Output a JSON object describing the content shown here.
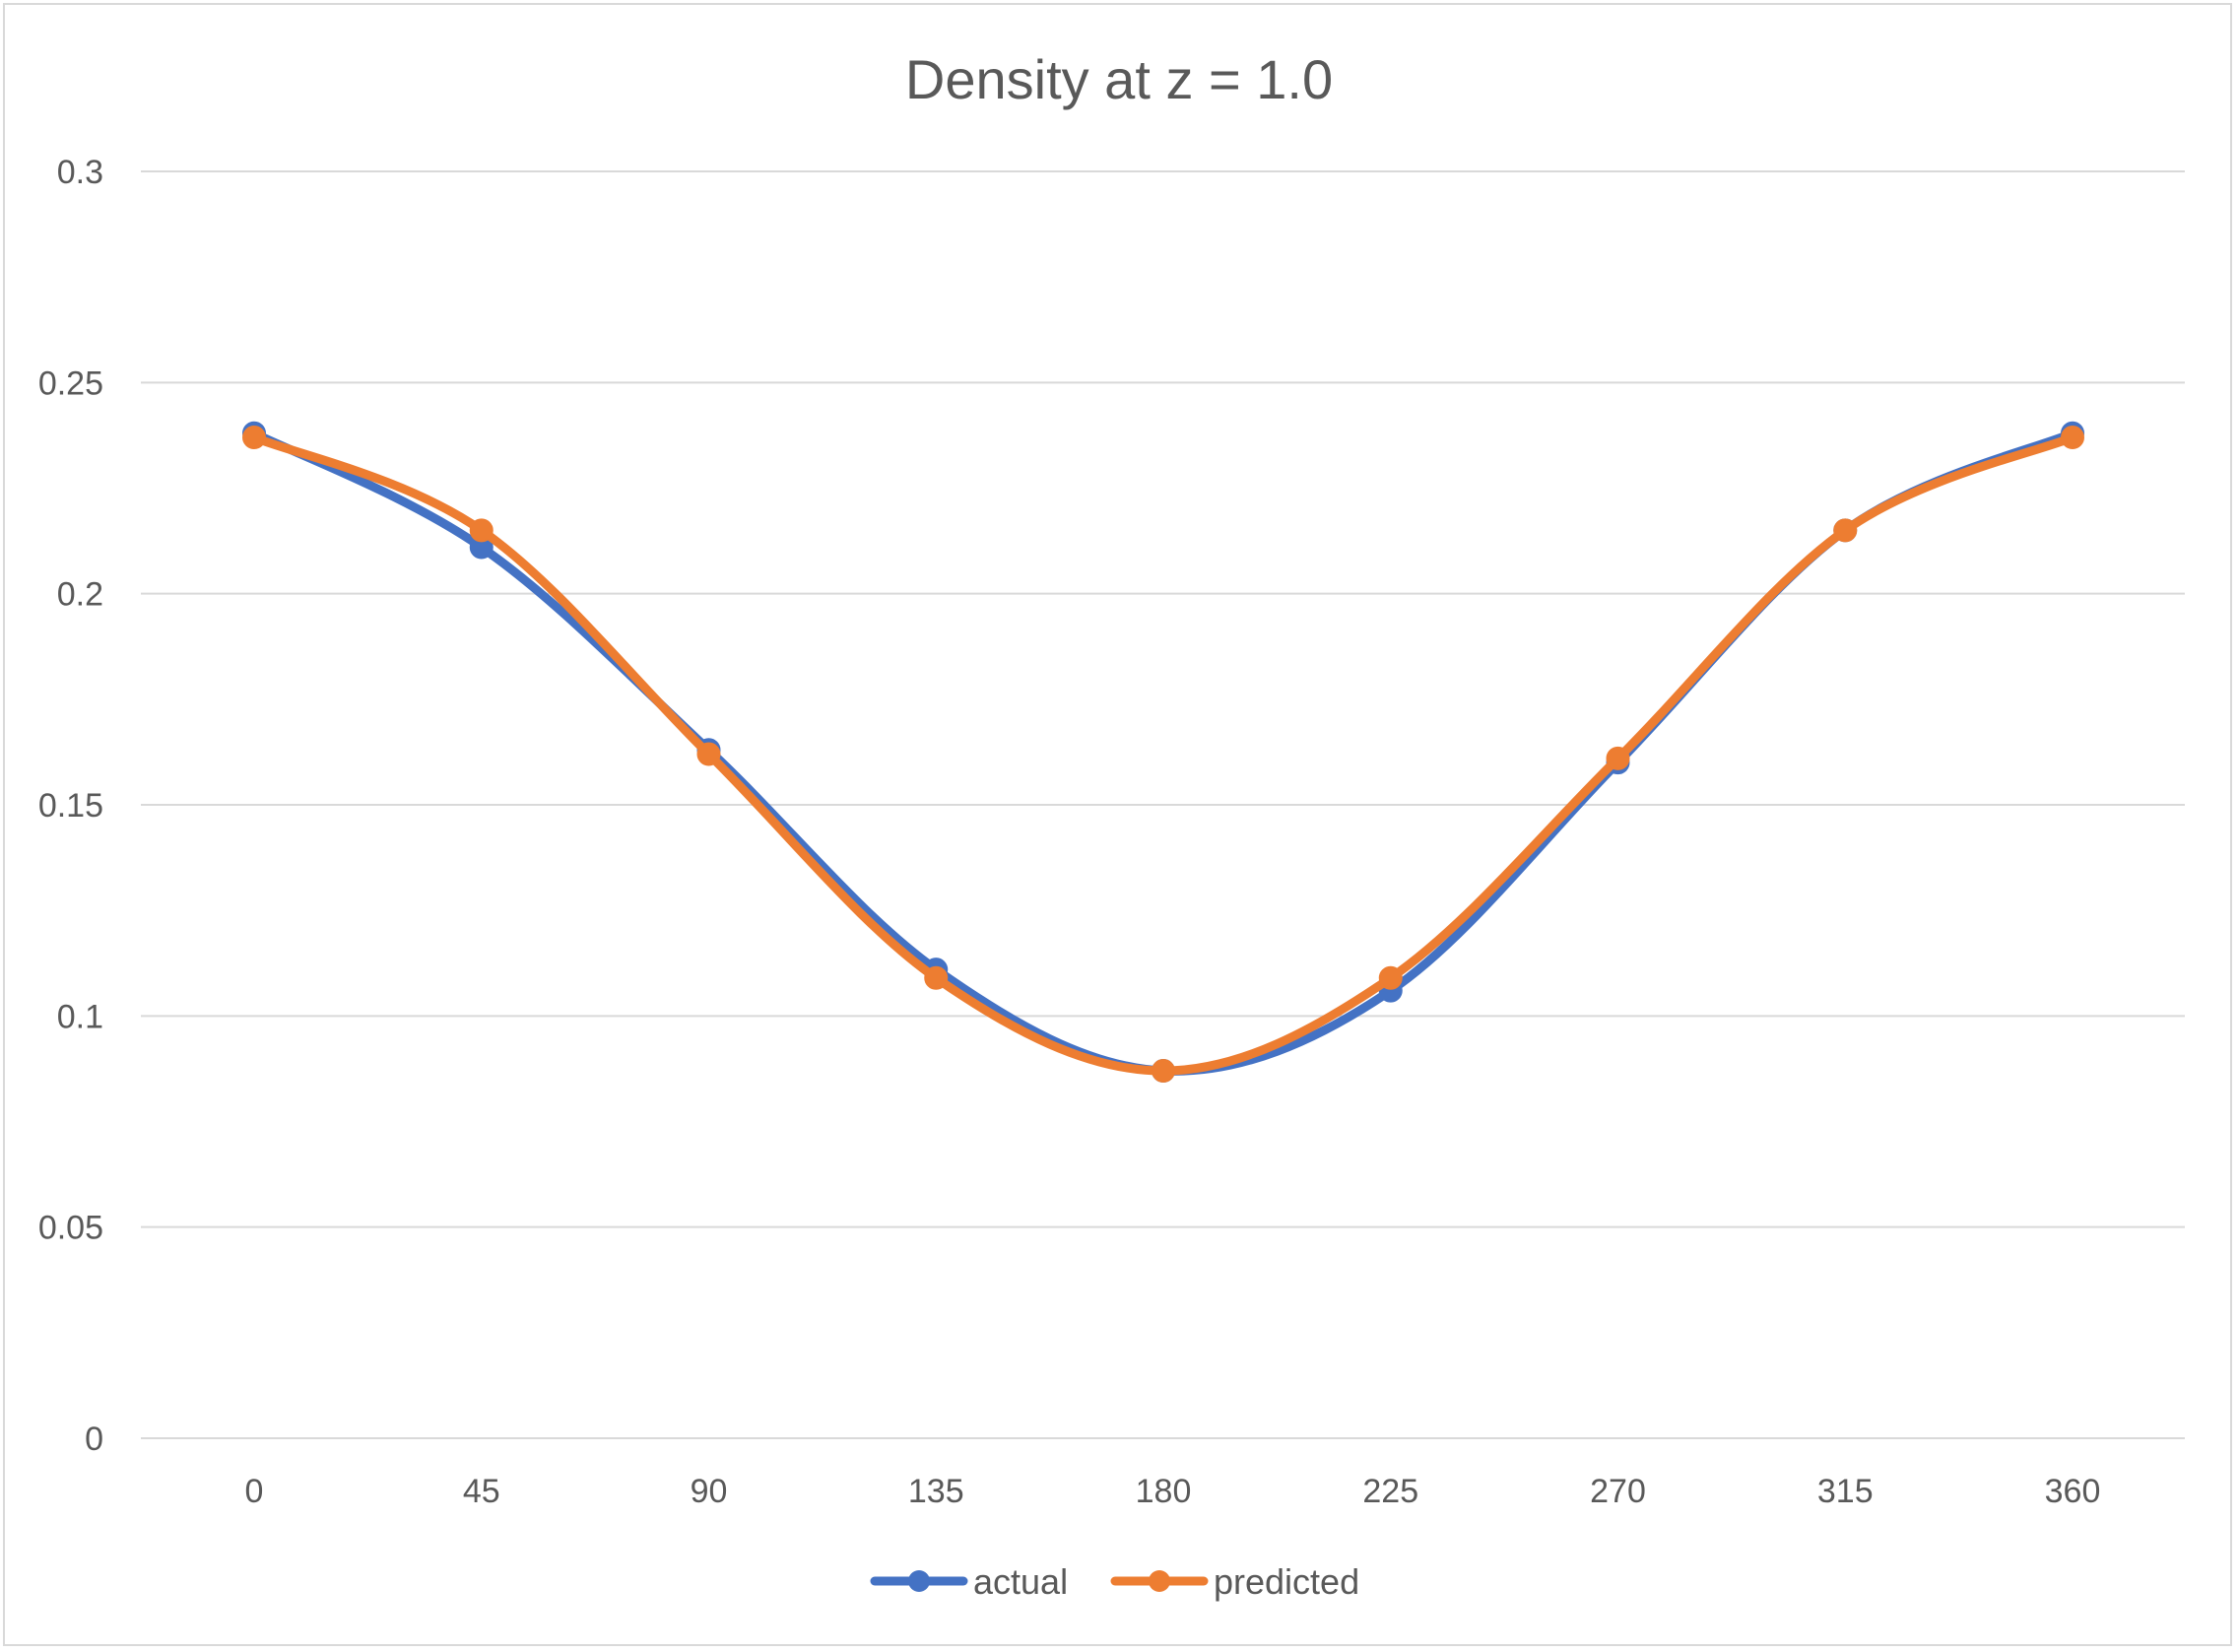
{
  "chart_data": {
    "type": "line",
    "title": "Density at z = 1.0",
    "xlabel": "",
    "ylabel": "",
    "x": [
      0,
      45,
      90,
      135,
      180,
      225,
      270,
      315,
      360
    ],
    "categories": [
      "0",
      "45",
      "90",
      "135",
      "180",
      "225",
      "270",
      "315",
      "360"
    ],
    "ylim": [
      0,
      0.3
    ],
    "yticks": [
      "0",
      "0.05",
      "0.1",
      "0.15",
      "0.2",
      "0.25",
      "0.3"
    ],
    "grid": true,
    "smooth": true,
    "legend_position": "bottom",
    "series": [
      {
        "name": "actual",
        "color": "#4472C4",
        "values": [
          0.238,
          0.211,
          0.163,
          0.111,
          0.087,
          0.106,
          0.16,
          0.215,
          0.238
        ]
      },
      {
        "name": "predicted",
        "color": "#ED7D31",
        "values": [
          0.237,
          0.215,
          0.162,
          0.109,
          0.087,
          0.109,
          0.161,
          0.215,
          0.237
        ]
      }
    ]
  }
}
